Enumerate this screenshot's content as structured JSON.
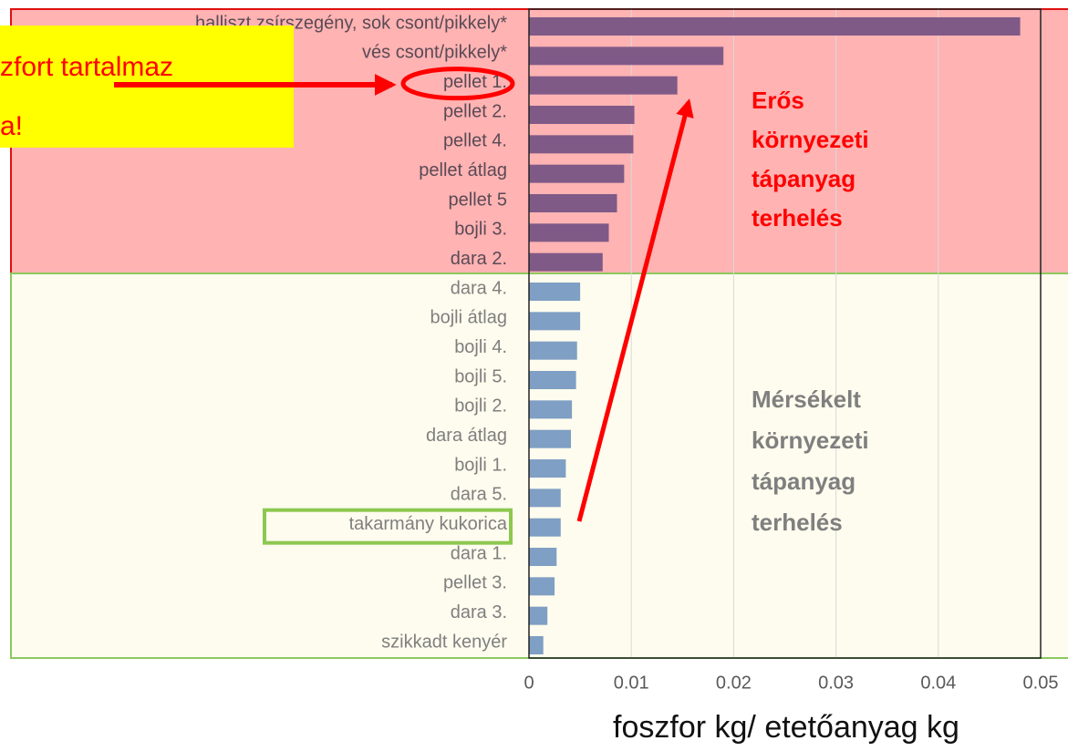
{
  "chart_data": {
    "type": "bar",
    "orientation": "horizontal",
    "categories": [
      "halliszt zsírszegény, sok csont/pikkely*",
      "vés csont/pikkely*",
      "pellet 1.",
      "pellet 2.",
      "pellet 4.",
      "pellet átlag",
      "pellet 5",
      "bojli 3.",
      "dara 2.",
      "dara 4.",
      "bojli átlag",
      "bojli 4.",
      "bojli 5.",
      "bojli 2.",
      "dara átlag",
      "bojli 1.",
      "dara 5.",
      "takarmány kukorica",
      "dara 1.",
      "pellet 3.",
      "dara 3.",
      "szikkadt kenyér"
    ],
    "values": [
      0.048,
      0.019,
      0.0145,
      0.0103,
      0.0102,
      0.0093,
      0.0086,
      0.0078,
      0.0072,
      0.005,
      0.005,
      0.0047,
      0.0046,
      0.0042,
      0.0041,
      0.0036,
      0.0031,
      0.0031,
      0.0027,
      0.0025,
      0.0018,
      0.0014
    ],
    "colors": [
      "#7f5a87",
      "#7f5a87",
      "#7f5a87",
      "#7f5a87",
      "#7f5a87",
      "#7f5a87",
      "#7f5a87",
      "#7f5a87",
      "#7f5a87",
      "#7f9fc4",
      "#7f9fc4",
      "#7f9fc4",
      "#7f9fc4",
      "#7f9fc4",
      "#7f9fc4",
      "#7f9fc4",
      "#7f9fc4",
      "#7f9fc4",
      "#7f9fc4",
      "#7f9fc4",
      "#7f9fc4",
      "#7f9fc4"
    ],
    "x_label": "foszfor kg/ etetőanyag kg",
    "xlim": [
      0,
      0.05
    ],
    "xticks": [
      0,
      0.01,
      0.02,
      0.03,
      0.04,
      0.05
    ],
    "grid": true,
    "annotations": {
      "callout": [
        "zfort tartalmaz",
        "a!"
      ],
      "strong": [
        "Erős",
        "környezeti",
        "tápanyag",
        "terhelés"
      ],
      "moderate": [
        "Mérsékelt",
        "környezeti",
        "tápanyag",
        "terhelés"
      ]
    }
  }
}
